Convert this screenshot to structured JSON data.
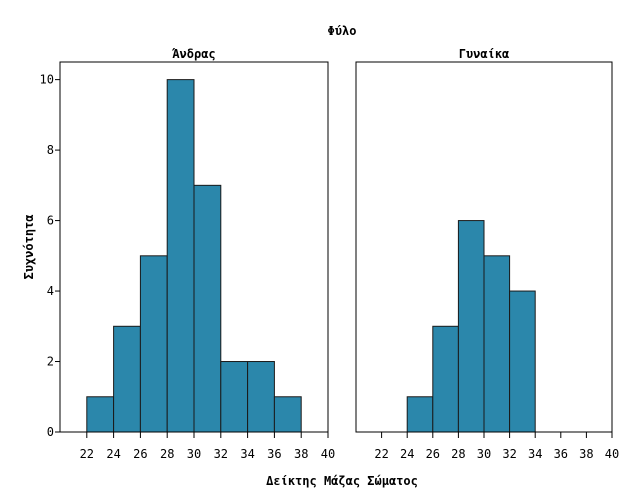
{
  "chart_data": {
    "type": "bar",
    "title": "Φύλο",
    "xlabel": "Δείκτης Μάζας Σώματος",
    "ylabel": "Συχνότητα",
    "xlim": [
      20,
      40
    ],
    "ylim": [
      0,
      10.5
    ],
    "x_ticks": [
      "22",
      "24",
      "26",
      "28",
      "30",
      "32",
      "34",
      "36",
      "38",
      "40"
    ],
    "y_ticks": [
      "0",
      "2",
      "4",
      "6",
      "8",
      "10"
    ],
    "bar_color": "#2b87ab",
    "bin_width": 2,
    "grid": false,
    "panels": [
      {
        "name": "Άνδρας",
        "bins": [
          {
            "start": 22,
            "end": 24,
            "count": 1
          },
          {
            "start": 24,
            "end": 26,
            "count": 3
          },
          {
            "start": 26,
            "end": 28,
            "count": 5
          },
          {
            "start": 28,
            "end": 30,
            "count": 10
          },
          {
            "start": 30,
            "end": 32,
            "count": 7
          },
          {
            "start": 32,
            "end": 34,
            "count": 2
          },
          {
            "start": 34,
            "end": 36,
            "count": 2
          },
          {
            "start": 36,
            "end": 38,
            "count": 1
          }
        ]
      },
      {
        "name": "Γυναίκα",
        "bins": [
          {
            "start": 24,
            "end": 26,
            "count": 1
          },
          {
            "start": 26,
            "end": 28,
            "count": 3
          },
          {
            "start": 28,
            "end": 30,
            "count": 6
          },
          {
            "start": 30,
            "end": 32,
            "count": 5
          },
          {
            "start": 32,
            "end": 34,
            "count": 4
          }
        ]
      }
    ]
  }
}
